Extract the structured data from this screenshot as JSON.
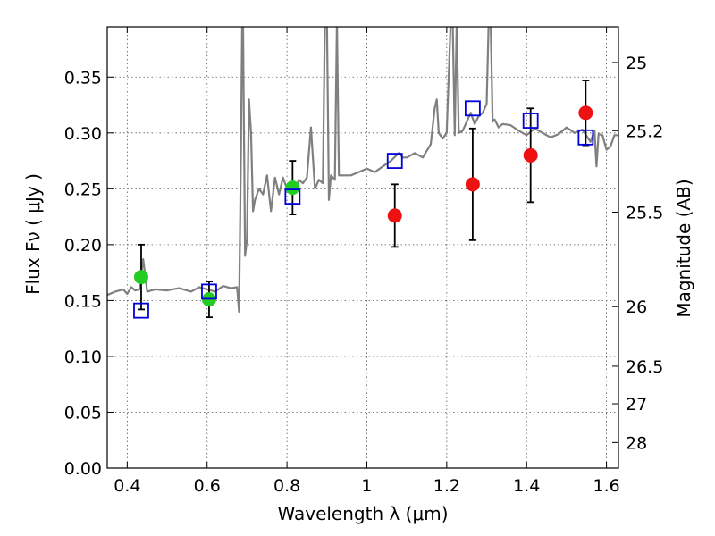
{
  "chart_data": {
    "type": "scatter",
    "xlabel": "Wavelength  λ (μm)",
    "ylabel": "Flux  Fν  ( μJy )",
    "ylabel_right": "Magnitude (AB)",
    "xlim": [
      0.35,
      1.63
    ],
    "ylim": [
      0.0,
      0.395
    ],
    "grid": true,
    "x_ticks": [
      0.4,
      0.6,
      0.8,
      1.0,
      1.2,
      1.4,
      1.6
    ],
    "x_tick_labels": [
      "0.4",
      "0.6",
      "0.8",
      "1",
      "1.2",
      "1.4",
      "1.6"
    ],
    "y_ticks": [
      0.0,
      0.05,
      0.1,
      0.15,
      0.2,
      0.25,
      0.3,
      0.35
    ],
    "y_tick_labels": [
      "0.00",
      "0.05",
      "0.10",
      "0.15",
      "0.20",
      "0.25",
      "0.30",
      "0.35"
    ],
    "right_ticks": [
      {
        "label": "25",
        "mag": 25.0
      },
      {
        "label": "25.2",
        "mag": 25.2
      },
      {
        "label": "25.5",
        "mag": 25.5
      },
      {
        "label": "26",
        "mag": 26.0
      },
      {
        "label": "26.5",
        "mag": 26.5
      },
      {
        "label": "27",
        "mag": 27.0
      },
      {
        "label": "28",
        "mag": 28.0
      }
    ],
    "colors": {
      "spectrum": "#808080",
      "green": "#22cc22",
      "red": "#ee1111",
      "model": "#0000dd",
      "errorbar": "#000000",
      "grid": "#555555"
    },
    "series": [
      {
        "marker": "circle-green",
        "x": [
          0.435,
          0.605,
          0.814
        ],
        "y": [
          0.171,
          0.151,
          0.251
        ],
        "yerr": [
          0.029,
          0.016,
          0.024
        ]
      },
      {
        "marker": "circle-red",
        "x": [
          1.07,
          1.265,
          1.41,
          1.548
        ],
        "y": [
          0.226,
          0.254,
          0.28,
          0.318
        ],
        "yerr": [
          0.028,
          0.05,
          0.042,
          0.029
        ]
      },
      {
        "marker": "square-open-blue",
        "x": [
          0.435,
          0.605,
          0.814,
          1.07,
          1.265,
          1.41,
          1.548
        ],
        "y": [
          0.141,
          0.158,
          0.243,
          0.275,
          0.322,
          0.311,
          0.296
        ]
      },
      {
        "marker": "line-gray",
        "x": [
          0.35,
          0.37,
          0.39,
          0.4,
          0.41,
          0.42,
          0.43,
          0.44,
          0.45,
          0.47,
          0.5,
          0.53,
          0.56,
          0.58,
          0.6,
          0.62,
          0.64,
          0.66,
          0.675,
          0.68,
          0.685,
          0.688,
          0.69,
          0.695,
          0.7,
          0.705,
          0.71,
          0.715,
          0.72,
          0.73,
          0.74,
          0.75,
          0.76,
          0.77,
          0.78,
          0.79,
          0.8,
          0.81,
          0.82,
          0.83,
          0.84,
          0.85,
          0.86,
          0.87,
          0.88,
          0.89,
          0.895,
          0.9,
          0.905,
          0.91,
          0.92,
          0.925,
          0.93,
          0.94,
          0.96,
          0.98,
          1.0,
          1.02,
          1.04,
          1.06,
          1.08,
          1.09,
          1.1,
          1.12,
          1.14,
          1.16,
          1.17,
          1.175,
          1.18,
          1.19,
          1.2,
          1.21,
          1.215,
          1.22,
          1.225,
          1.23,
          1.24,
          1.25,
          1.26,
          1.27,
          1.28,
          1.29,
          1.3,
          1.305,
          1.31,
          1.315,
          1.32,
          1.33,
          1.34,
          1.36,
          1.38,
          1.4,
          1.42,
          1.44,
          1.46,
          1.48,
          1.5,
          1.52,
          1.54,
          1.56,
          1.57,
          1.575,
          1.58,
          1.59,
          1.6,
          1.61,
          1.62,
          1.63
        ],
        "y": [
          0.155,
          0.158,
          0.16,
          0.156,
          0.162,
          0.159,
          0.16,
          0.187,
          0.158,
          0.16,
          0.159,
          0.161,
          0.158,
          0.162,
          0.16,
          0.158,
          0.163,
          0.161,
          0.162,
          0.14,
          0.29,
          0.4,
          0.4,
          0.19,
          0.205,
          0.33,
          0.3,
          0.23,
          0.24,
          0.25,
          0.245,
          0.262,
          0.23,
          0.26,
          0.245,
          0.26,
          0.25,
          0.253,
          0.25,
          0.258,
          0.255,
          0.26,
          0.305,
          0.25,
          0.258,
          0.255,
          0.4,
          0.4,
          0.24,
          0.262,
          0.258,
          0.4,
          0.262,
          0.262,
          0.262,
          0.265,
          0.268,
          0.265,
          0.27,
          0.275,
          0.282,
          0.278,
          0.278,
          0.282,
          0.278,
          0.29,
          0.322,
          0.33,
          0.3,
          0.295,
          0.3,
          0.4,
          0.4,
          0.298,
          0.4,
          0.3,
          0.302,
          0.31,
          0.318,
          0.308,
          0.315,
          0.318,
          0.326,
          0.4,
          0.4,
          0.31,
          0.312,
          0.305,
          0.308,
          0.307,
          0.302,
          0.298,
          0.304,
          0.3,
          0.296,
          0.299,
          0.305,
          0.3,
          0.303,
          0.292,
          0.302,
          0.27,
          0.299,
          0.298,
          0.285,
          0.288,
          0.298,
          0.298
        ]
      }
    ]
  }
}
